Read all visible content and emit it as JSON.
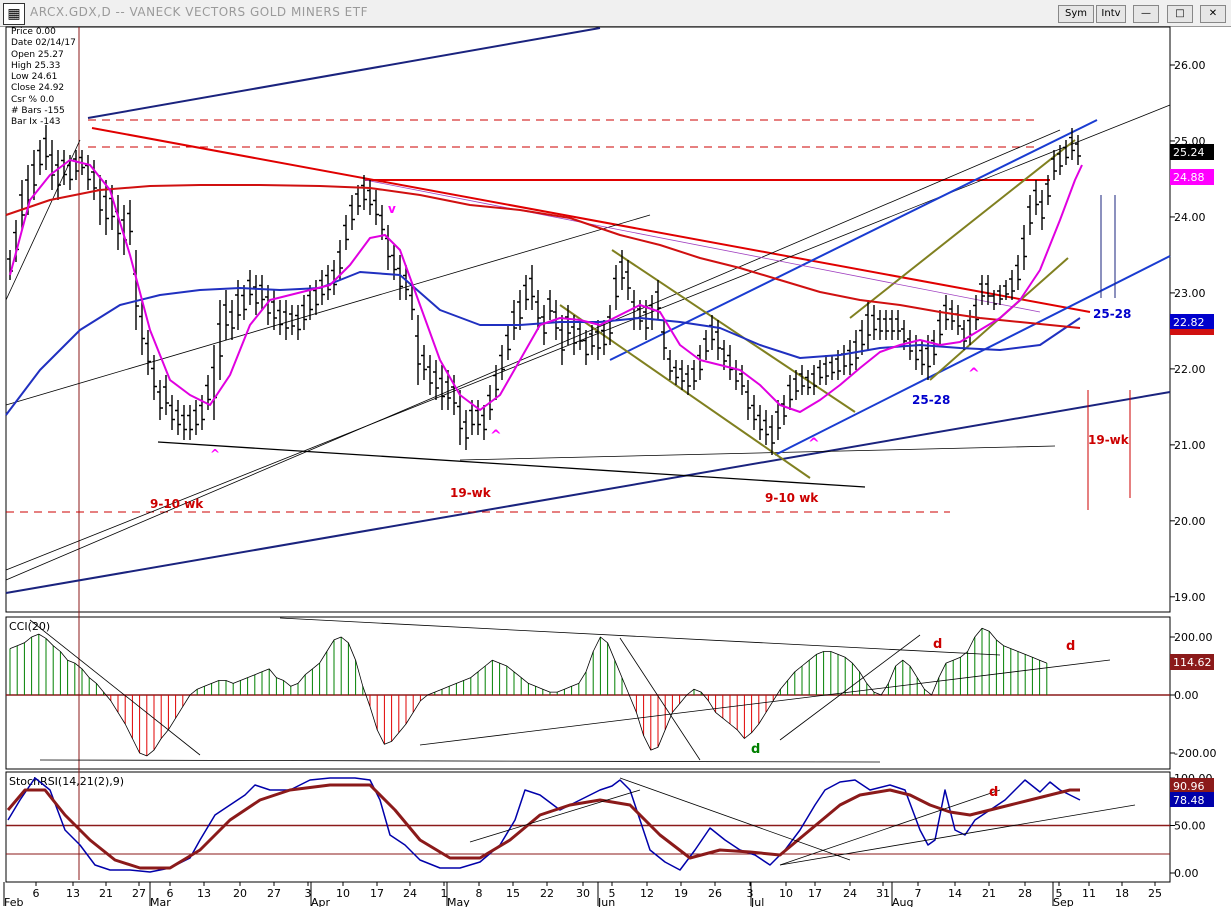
{
  "window": {
    "title": "ARCX.GDX,D -- VANECK VECTORS GOLD MINERS ETF",
    "symbol_button": "Sym",
    "interval_button": "Intv"
  },
  "info_box": [
    {
      "label": "Price",
      "value": "0.00"
    },
    {
      "label": "Date",
      "value": "02/14/17"
    },
    {
      "label": "Open",
      "value": "25.27"
    },
    {
      "label": "High",
      "value": "25.33"
    },
    {
      "label": "Low",
      "value": "24.61"
    },
    {
      "label": "Close",
      "value": "24.92"
    },
    {
      "label": "Csr %",
      "value": "0.0"
    },
    {
      "label": "# Bars",
      "value": "-155"
    },
    {
      "label": "Bar Ix",
      "value": "-143"
    }
  ],
  "chart_data": {
    "type": "line",
    "main": {
      "yticks": [
        "26.00",
        "25.00",
        "24.00",
        "23.00",
        "22.00",
        "21.00",
        "20.00",
        "19.00"
      ],
      "ylim": [
        18.8,
        26.5
      ],
      "price_tags": [
        {
          "value": "25.24",
          "bg": "#000000",
          "fg": "#ffffff"
        },
        {
          "value": "24.88",
          "bg": "#ff00ff",
          "fg": "#ffffff"
        },
        {
          "value": "22.82",
          "bg": "#0000cc",
          "fg": "#ffffff"
        }
      ],
      "annotations": [
        {
          "text": "9-10 wk",
          "color": "#cc0000"
        },
        {
          "text": "19-wk",
          "color": "#cc0000"
        },
        {
          "text": "9-10 wk",
          "color": "#cc0000"
        },
        {
          "text": "19-wk",
          "color": "#cc0000"
        },
        {
          "text": "25-28",
          "color": "#0000cc"
        },
        {
          "text": "25-28",
          "color": "#0000cc"
        },
        {
          "text": "v",
          "color": "#ff00ff"
        },
        {
          "text": "^",
          "color": "#ff00ff"
        }
      ]
    },
    "cci": {
      "label": "CCI(20)",
      "yticks": [
        "200.00",
        "0.00",
        "-200.00"
      ],
      "value_tag": "114.62",
      "annotations": [
        {
          "text": "d",
          "color": "#cc0000"
        },
        {
          "text": "d",
          "color": "#cc0000"
        },
        {
          "text": "d",
          "color": "#008000"
        }
      ]
    },
    "stochrsi": {
      "label": "StochRSI(14,21(2),9)",
      "yticks": [
        "100.00",
        "50.00",
        "0.00"
      ],
      "value_tags": [
        {
          "value": "90.96",
          "bg": "#8b1a1a",
          "fg": "#ffffff"
        },
        {
          "value": "78.48",
          "bg": "#0000aa",
          "fg": "#ffffff"
        }
      ],
      "annotations": [
        {
          "text": "d",
          "color": "#cc0000"
        }
      ]
    },
    "x_axis": {
      "day_ticks": [
        "6",
        "13",
        "21",
        "27",
        "6",
        "13",
        "20",
        "27",
        "3",
        "10",
        "17",
        "24",
        "1",
        "8",
        "15",
        "22",
        "30",
        "5",
        "12",
        "19",
        "26",
        "3",
        "10",
        "17",
        "24",
        "31",
        "7",
        "14",
        "21",
        "28",
        "5",
        "11",
        "18",
        "25"
      ],
      "months": [
        "Feb",
        "Mar",
        "Apr",
        "May",
        "Jun",
        "Jul",
        "Aug",
        "Sep"
      ]
    }
  }
}
